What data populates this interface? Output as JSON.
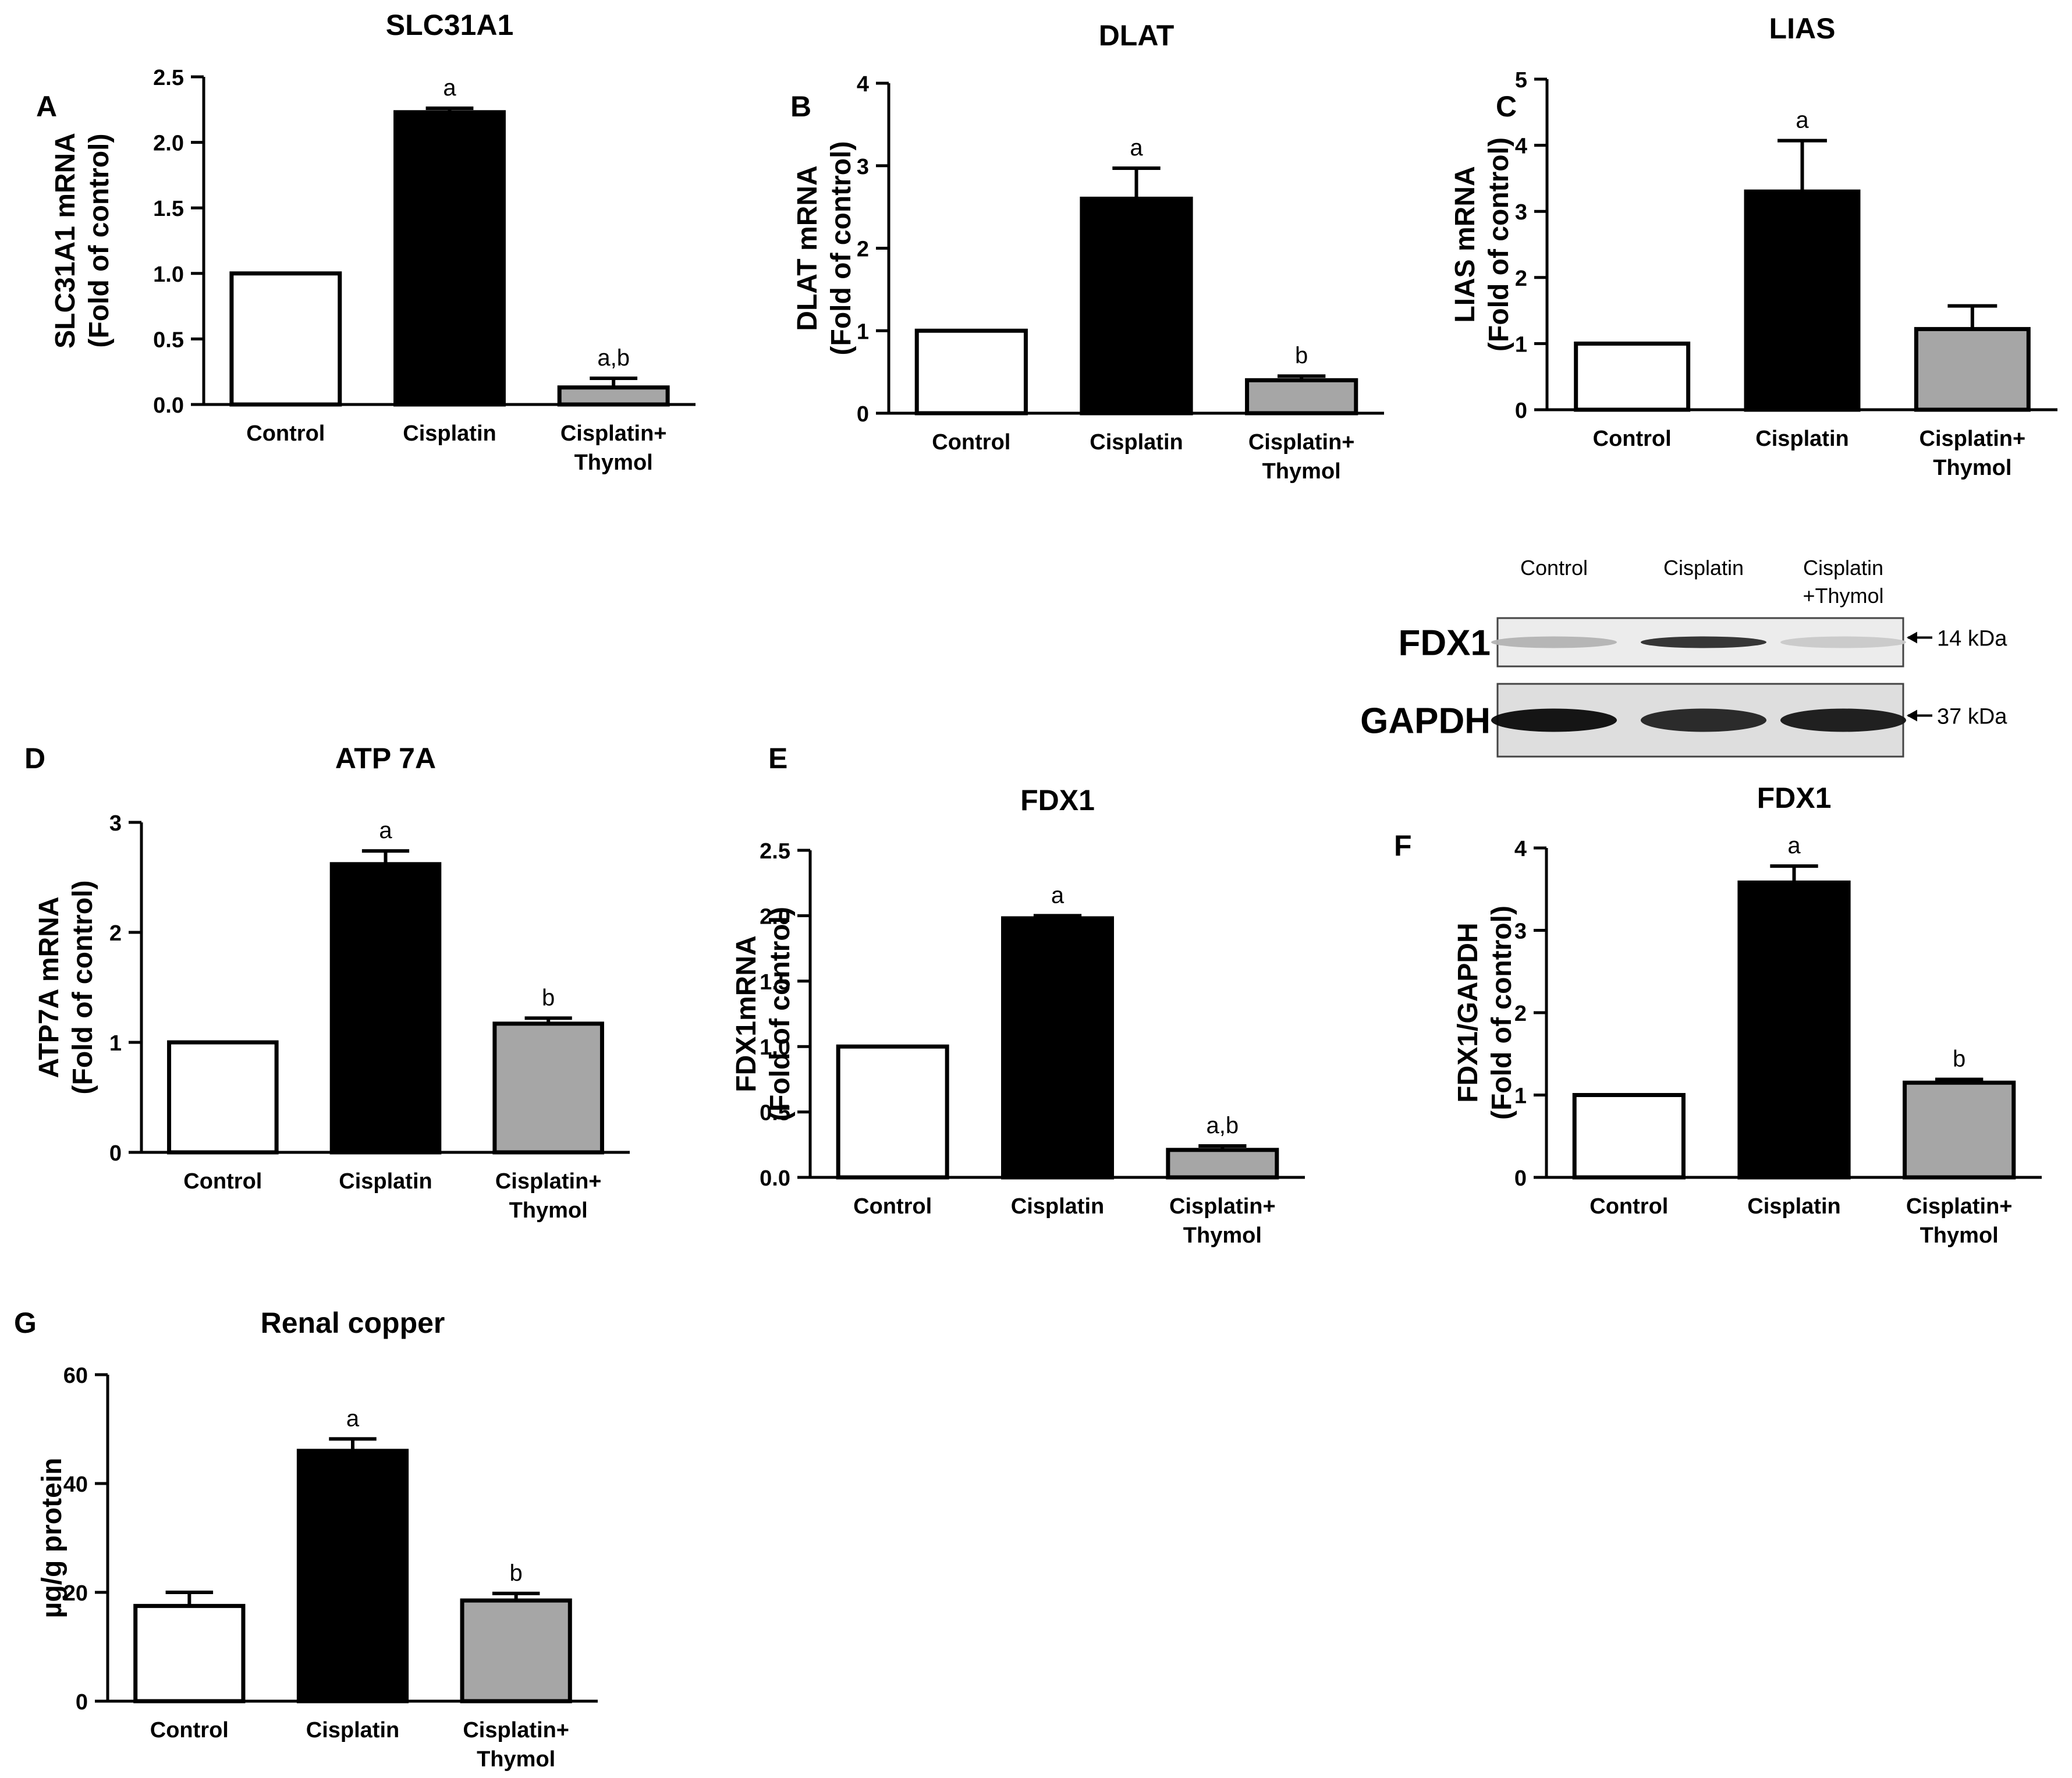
{
  "colors": {
    "control": "#ffffff",
    "cisplatin": "#000000",
    "cisplatin_thymol": "#a6a6a6",
    "axis": "#000000"
  },
  "chart_data": [
    {
      "panel": "A",
      "type": "bar",
      "title": "SLC31A1",
      "ylabel_lines": [
        "SLC31A1 mRNA",
        "(Fold of control)"
      ],
      "categories": [
        [
          "Control"
        ],
        [
          "Cisplatin"
        ],
        [
          "Cisplatin+",
          "Thymol"
        ]
      ],
      "values": [
        1.0,
        2.23,
        0.13
      ],
      "errors": [
        0,
        0.03,
        0.07
      ],
      "annotations": [
        "",
        "a",
        "a,b"
      ],
      "ylim": [
        0,
        2.5
      ],
      "yticks": [
        "0.0",
        "0.5",
        "1.0",
        "1.5",
        "2.0",
        "2.5"
      ]
    },
    {
      "panel": "B",
      "type": "bar",
      "title": "DLAT",
      "ylabel_lines": [
        "DLAT mRNA",
        "(Fold of control)"
      ],
      "categories": [
        [
          "Control"
        ],
        [
          "Cisplatin"
        ],
        [
          "Cisplatin+",
          "Thymol"
        ]
      ],
      "values": [
        1.0,
        2.6,
        0.4
      ],
      "errors": [
        0,
        0.37,
        0.05
      ],
      "annotations": [
        "",
        "a",
        "b"
      ],
      "ylim": [
        0,
        4
      ],
      "yticks": [
        "0",
        "1",
        "2",
        "3",
        "4"
      ]
    },
    {
      "panel": "C",
      "type": "bar",
      "title": "LIAS",
      "ylabel_lines": [
        "LIAS mRNA",
        "(Fold of control)"
      ],
      "categories": [
        [
          "Control"
        ],
        [
          "Cisplatin"
        ],
        [
          "Cisplatin+",
          "Thymol"
        ]
      ],
      "values": [
        1.0,
        3.3,
        1.22
      ],
      "errors": [
        0,
        0.77,
        0.35
      ],
      "annotations": [
        "",
        "a",
        ""
      ],
      "ylim": [
        0,
        5
      ],
      "yticks": [
        "0",
        "1",
        "2",
        "3",
        "4",
        "5"
      ]
    },
    {
      "panel": "D",
      "type": "bar",
      "title": "ATP 7A",
      "ylabel_lines": [
        "ATP7A mRNA",
        "(Fold of control)"
      ],
      "categories": [
        [
          "Control"
        ],
        [
          "Cisplatin"
        ],
        [
          "Cisplatin+",
          "Thymol"
        ]
      ],
      "values": [
        1.0,
        2.62,
        1.17
      ],
      "errors": [
        0,
        0.12,
        0.05
      ],
      "annotations": [
        "",
        "a",
        "b"
      ],
      "ylim": [
        0,
        3
      ],
      "yticks": [
        "0",
        "1",
        "2",
        "3"
      ]
    },
    {
      "panel": "E",
      "type": "bar",
      "title": "FDX1",
      "ylabel_lines": [
        "FDX1mRNA",
        "(Fold of control)"
      ],
      "categories": [
        [
          "Control"
        ],
        [
          "Cisplatin"
        ],
        [
          "Cisplatin+",
          "Thymol"
        ]
      ],
      "values": [
        1.0,
        1.98,
        0.21
      ],
      "errors": [
        0,
        0.02,
        0.03
      ],
      "annotations": [
        "",
        "a",
        "a,b"
      ],
      "ylim": [
        0,
        2.5
      ],
      "yticks": [
        "0.0",
        "0.5",
        "1.0",
        "1.5",
        "2.0",
        "2.5"
      ]
    },
    {
      "panel": "F",
      "type": "bar",
      "title": "FDX1",
      "ylabel_lines": [
        "FDX1/GAPDH",
        "(Fold of control)"
      ],
      "categories": [
        [
          "Control"
        ],
        [
          "Cisplatin"
        ],
        [
          "Cisplatin+",
          "Thymol"
        ]
      ],
      "values": [
        1.0,
        3.58,
        1.15
      ],
      "errors": [
        0,
        0.2,
        0.04
      ],
      "annotations": [
        "",
        "a",
        "b"
      ],
      "ylim": [
        0,
        4
      ],
      "yticks": [
        "0",
        "1",
        "2",
        "3",
        "4"
      ]
    },
    {
      "panel": "G",
      "type": "bar",
      "title": "Renal copper",
      "ylabel_lines": [
        "µg/g protein"
      ],
      "categories": [
        [
          "Control"
        ],
        [
          "Cisplatin"
        ],
        [
          "Cisplatin+",
          "Thymol"
        ]
      ],
      "values": [
        17.5,
        46,
        18.5
      ],
      "errors": [
        2.5,
        2.2,
        1.3
      ],
      "annotations": [
        "",
        "a",
        "b"
      ],
      "ylim": [
        0,
        60
      ],
      "yticks": [
        "0",
        "20",
        "40",
        "60"
      ]
    }
  ],
  "blot": {
    "lanes": [
      [
        "Control"
      ],
      [
        "Cisplatin"
      ],
      [
        "Cisplatin",
        "+Thymol"
      ]
    ],
    "rows": [
      {
        "label": "FDX1",
        "marker": "14 kDa",
        "intensities": [
          0.25,
          0.85,
          0.15
        ]
      },
      {
        "label": "GAPDH",
        "marker": "37 kDa",
        "intensities": [
          1.0,
          0.9,
          0.95
        ]
      }
    ]
  }
}
